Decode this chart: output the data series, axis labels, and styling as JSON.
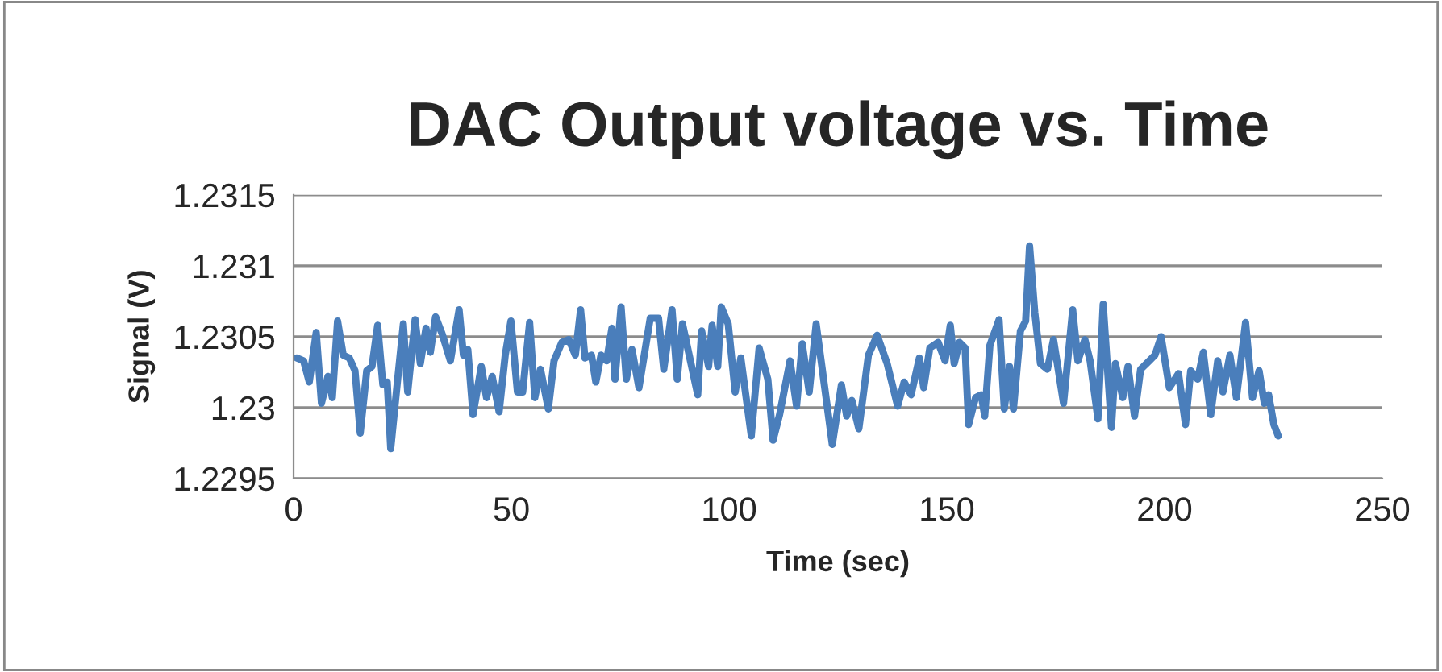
{
  "chart_data": {
    "type": "line",
    "title": "DAC Output voltage vs. Time",
    "xlabel": "Time (sec)",
    "ylabel": "Signal (V)",
    "xlim": [
      0,
      250
    ],
    "xticks": [
      0,
      50,
      100,
      150,
      200,
      250
    ],
    "ylim": [
      1.2295,
      1.2315
    ],
    "yticks": [
      {
        "value": 1.2295,
        "label": "1.2295"
      },
      {
        "value": 1.23,
        "label": "1.23"
      },
      {
        "value": 1.2305,
        "label": "1.2305"
      },
      {
        "value": 1.231,
        "label": "1.231"
      },
      {
        "value": 1.2315,
        "label": "1.2315"
      }
    ],
    "grid": "y",
    "legend": false,
    "marker": "none",
    "line_style": "solid",
    "series": [
      {
        "color": "#4a7ebb",
        "x": [
          0.7,
          2.3,
          3.6,
          5.2,
          6.4,
          7.9,
          8.9,
          10.1,
          11.4,
          12.8,
          14.1,
          15.3,
          16.8,
          18.0,
          19.3,
          20.5,
          21.5,
          22.3,
          23.7,
          25.2,
          26.2,
          27.9,
          29.1,
          30.4,
          31.4,
          32.6,
          34.1,
          36.0,
          38.0,
          39.0,
          40.0,
          41.2,
          43.1,
          44.3,
          45.6,
          47.2,
          48.6,
          49.9,
          51.4,
          52.6,
          54.2,
          55.4,
          56.7,
          58.5,
          59.8,
          61.6,
          63.2,
          64.7,
          65.9,
          66.9,
          68.4,
          69.4,
          70.6,
          71.9,
          73.1,
          73.8,
          75.2,
          76.4,
          77.7,
          79.3,
          81.9,
          83.8,
          85.0,
          86.9,
          88.1,
          89.3,
          92.8,
          93.7,
          95.3,
          96.1,
          97.4,
          98.2,
          99.8,
          101.4,
          102.7,
          105.1,
          106.9,
          108.9,
          110.1,
          111.6,
          114.0,
          115.5,
          116.8,
          118.4,
          120.0,
          121.4,
          123.7,
          125.8,
          127.0,
          128.2,
          129.8,
          132.0,
          134.0,
          136.3,
          138.7,
          140.2,
          141.8,
          143.7,
          144.7,
          146.1,
          148.0,
          149.6,
          150.8,
          151.7,
          152.9,
          154.2,
          155.0,
          156.6,
          157.9,
          158.7,
          159.9,
          162.0,
          163.2,
          164.4,
          165.3,
          166.9,
          168.1,
          169.0,
          170.2,
          171.5,
          173.1,
          174.5,
          176.8,
          178.9,
          180.1,
          181.7,
          182.9,
          184.7,
          185.9,
          187.8,
          188.7,
          190.4,
          191.6,
          193.1,
          194.5,
          196.5,
          197.8,
          199.2,
          201.1,
          203.2,
          204.8,
          206.0,
          207.6,
          208.9,
          210.6,
          212.2,
          213.4,
          215.0,
          216.5,
          218.6,
          220.2,
          221.7,
          222.9,
          223.9,
          225.1,
          226.1
        ],
        "values": [
          1.23035,
          1.23033,
          1.23018,
          1.23053,
          1.23003,
          1.23022,
          1.23007,
          1.23061,
          1.23037,
          1.23035,
          1.23026,
          1.22982,
          1.23026,
          1.23029,
          1.23058,
          1.23016,
          1.23018,
          1.22971,
          1.23014,
          1.23059,
          1.23011,
          1.23062,
          1.23031,
          1.23056,
          1.23039,
          1.23064,
          1.23052,
          1.23033,
          1.23069,
          1.23037,
          1.23041,
          1.22995,
          1.23029,
          1.23007,
          1.23022,
          1.22997,
          1.23037,
          1.23061,
          1.23011,
          1.23011,
          1.2306,
          1.23007,
          1.23027,
          1.22999,
          1.23033,
          1.23046,
          1.23048,
          1.23037,
          1.23069,
          1.23035,
          1.23037,
          1.23018,
          1.23037,
          1.23033,
          1.23056,
          1.2302,
          1.23071,
          1.2302,
          1.23041,
          1.23014,
          1.23063,
          1.23063,
          1.23027,
          1.23069,
          1.2302,
          1.23059,
          1.23009,
          1.23054,
          1.23029,
          1.23058,
          1.23029,
          1.23071,
          1.23059,
          1.23011,
          1.23035,
          1.2298,
          1.23042,
          1.2302,
          1.22977,
          1.22995,
          1.23033,
          1.23001,
          1.23045,
          1.23011,
          1.23059,
          1.23027,
          1.22974,
          1.23016,
          1.22994,
          1.23005,
          1.22985,
          1.23037,
          1.23051,
          1.23031,
          1.23001,
          1.23018,
          1.23009,
          1.23035,
          1.23014,
          1.23042,
          1.23046,
          1.23033,
          1.23058,
          1.23031,
          1.23046,
          1.23042,
          1.22988,
          1.23007,
          1.23009,
          1.22994,
          1.23044,
          1.23062,
          1.22999,
          1.23029,
          1.22999,
          1.23054,
          1.23061,
          1.23114,
          1.23067,
          1.23031,
          1.23027,
          1.23048,
          1.23003,
          1.23069,
          1.23033,
          1.23048,
          1.23033,
          1.22992,
          1.23073,
          1.22986,
          1.23031,
          1.23007,
          1.23029,
          1.22994,
          1.23027,
          1.23033,
          1.23037,
          1.2305,
          1.23014,
          1.23024,
          1.22988,
          1.23026,
          1.2302,
          1.23039,
          1.22995,
          1.23033,
          1.23011,
          1.23037,
          1.23007,
          1.2306,
          1.23007,
          1.23026,
          1.23003,
          1.23009,
          1.22988,
          1.2298
        ]
      }
    ]
  }
}
